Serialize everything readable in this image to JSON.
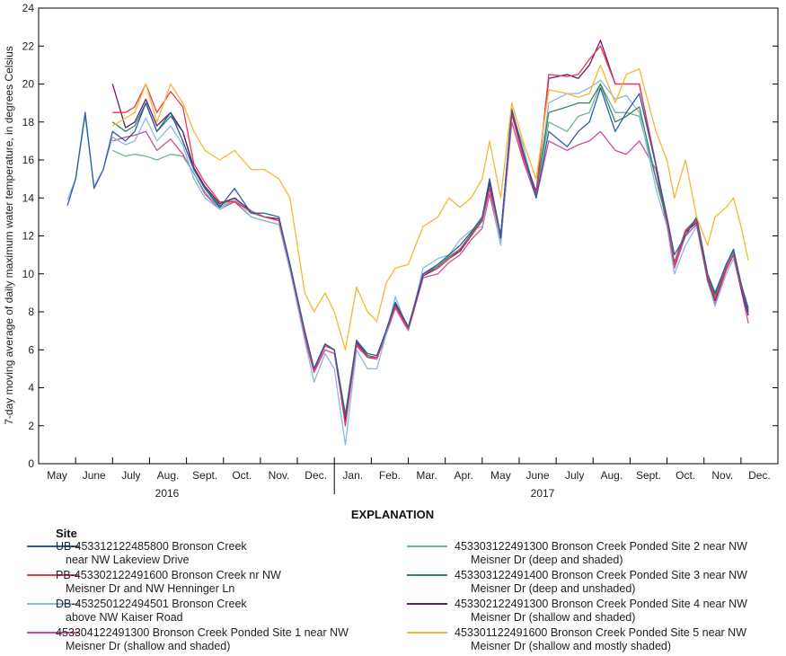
{
  "chart_data": {
    "type": "line",
    "ylabel": "7-day moving average of daily maximum water temperature, in degrees Celsius",
    "ylim": [
      0,
      24
    ],
    "yticks": [
      0,
      2,
      4,
      6,
      8,
      10,
      12,
      14,
      16,
      18,
      20,
      22,
      24
    ],
    "month_labels": [
      "May",
      "June",
      "July",
      "Aug.",
      "Sept.",
      "Oct.",
      "Nov.",
      "Dec.",
      "Jan.",
      "Feb.",
      "Mar.",
      "Apr.",
      "May",
      "June",
      "July",
      "Aug.",
      "Sept.",
      "Oct.",
      "Nov.",
      "Dec."
    ],
    "year_labels": [
      "2016",
      "2017"
    ],
    "x_units": "months since May 1, 2016",
    "x": [
      0.78,
      1.0,
      1.26,
      1.5,
      1.75,
      2.0,
      2.35,
      2.6,
      2.9,
      3.2,
      3.57,
      3.9,
      4.2,
      4.5,
      4.9,
      5.3,
      5.75,
      6.1,
      6.5,
      6.8,
      7.2,
      7.45,
      7.75,
      8.0,
      8.3,
      8.6,
      8.9,
      9.15,
      9.4,
      9.65,
      10.0,
      10.4,
      10.8,
      11.1,
      11.4,
      11.7,
      12.0,
      12.2,
      12.5,
      12.8,
      13.1,
      13.46,
      13.8,
      14.3,
      14.6,
      14.9,
      15.2,
      15.6,
      15.9,
      16.25,
      16.7,
      17.0,
      17.2,
      17.5,
      17.8,
      18.1,
      18.3,
      18.6,
      18.8,
      19.0,
      19.2
    ],
    "explanation_title": "EXPLANATION",
    "legend_heading": "Site",
    "series": [
      {
        "name1": "UB-453312122485800 Bronson Creek",
        "name2": "near NW Lakeview Drive",
        "color": "#2a5caa",
        "values": [
          13.6,
          15,
          18.5,
          14.5,
          15.5,
          17.5,
          17,
          17.5,
          19,
          17.5,
          18.5,
          17,
          15.5,
          14.5,
          13.5,
          14.5,
          13.2,
          13.2,
          13,
          10.5,
          7,
          5,
          6.3,
          6,
          2.5,
          6.5,
          5.8,
          5.7,
          7,
          8.5,
          7.2,
          10,
          10.5,
          11,
          11.5,
          12.2,
          13,
          15,
          12,
          18.7,
          16.5,
          14,
          17.5,
          16.7,
          17.5,
          18,
          19.8,
          17.5,
          18.5,
          19.5,
          15.7,
          13,
          11,
          12,
          13,
          10,
          9,
          10.5,
          11.3,
          9.5,
          8
        ]
      },
      {
        "name1": "PB-453302122491600 Bronson Creek nr NW",
        "name2": "Meisner Dr and NW Henninger Ln",
        "color": "#e8384f",
        "values": [
          null,
          null,
          null,
          null,
          null,
          18.5,
          18.5,
          18.8,
          20,
          18.5,
          19.6,
          18.8,
          15.8,
          14.8,
          13.8,
          13.8,
          13.3,
          13,
          12.8,
          10.4,
          6.8,
          4.9,
          6.2,
          6,
          2,
          6.3,
          5.6,
          5.6,
          7,
          8.3,
          7.1,
          10,
          10.3,
          10.8,
          11.3,
          12,
          12.8,
          14.5,
          12,
          18.4,
          16.2,
          14.2,
          20.5,
          20.4,
          20.5,
          21.3,
          22,
          20,
          20,
          20,
          15.8,
          12.8,
          10.5,
          12.3,
          12.8,
          9.8,
          8.7,
          10.3,
          11,
          9.3,
          8
        ]
      },
      {
        "name1": "DB-453250122494501 Bronson Creek",
        "name2": "above NW Kaiser Road",
        "color": "#8ab8e0",
        "values": [
          13.9,
          15,
          18.3,
          14.6,
          15.5,
          17.2,
          16.8,
          17,
          18.2,
          17,
          17.8,
          16.8,
          15,
          14,
          13.4,
          13.9,
          13,
          12.8,
          12.6,
          10.2,
          6.5,
          4.3,
          5.8,
          5,
          1,
          6,
          5,
          5,
          6.8,
          8.8,
          7,
          10.3,
          10.8,
          11,
          11.8,
          12.3,
          12.5,
          14.5,
          11.5,
          18.5,
          16.8,
          14,
          19,
          19.5,
          19.5,
          19.8,
          20.2,
          19.2,
          19.4,
          18.5,
          14.5,
          12.5,
          10,
          11.5,
          12.5,
          9.6,
          8.3,
          10,
          10.8,
          9.3,
          7.9
        ]
      },
      {
        "name1": "453304122491300 Bronson Creek Ponded Site 1 near NW",
        "name2": "Meisner Dr (shallow and shaded)",
        "color": "#cc4b9c",
        "values": [
          null,
          null,
          null,
          null,
          null,
          17,
          17.2,
          17.3,
          17.5,
          16.5,
          17.1,
          16.3,
          15.3,
          14.2,
          13.4,
          13.8,
          13,
          12.8,
          12.6,
          10.2,
          6.6,
          4.8,
          6,
          5.8,
          2.2,
          6.2,
          5.6,
          5.5,
          6.8,
          8.2,
          7,
          9.8,
          10,
          10.6,
          11,
          11.8,
          12.4,
          14.2,
          11.6,
          18,
          16,
          14,
          17,
          16.5,
          16.8,
          17,
          17.5,
          16.5,
          16.3,
          17,
          15.5,
          12.5,
          10.3,
          12,
          12.6,
          9.6,
          8.4,
          10.2,
          11,
          9.2,
          7.4
        ]
      },
      {
        "name1": "453303122491300 Bronson Creek Ponded Site 2 near NW",
        "name2": "Meisner Dr (deep and shaded)",
        "color": "#6db39a",
        "values": [
          null,
          null,
          null,
          null,
          null,
          16.5,
          16.2,
          16.3,
          16.2,
          16,
          16.3,
          16.2,
          15.3,
          14.3,
          13.5,
          13.9,
          13.2,
          13,
          12.8,
          10.5,
          6.8,
          5,
          6.3,
          6,
          2.5,
          6.5,
          5.7,
          5.6,
          7,
          8.5,
          7.2,
          10,
          10.3,
          10.8,
          11.2,
          12,
          12.8,
          14.8,
          12,
          18.5,
          16.3,
          14.3,
          18,
          17.5,
          18.3,
          18.5,
          20,
          18.5,
          18.5,
          18.3,
          15,
          12.8,
          10.6,
          12.2,
          12.8,
          9.8,
          8.8,
          10.4,
          11.1,
          9.4,
          8.1
        ]
      },
      {
        "name1": "453303122491400 Bronson Creek Ponded Site 3 near NW",
        "name2": "Meisner Dr (deep and unshaded)",
        "color": "#2e8b57",
        "values": [
          null,
          null,
          null,
          null,
          null,
          18,
          17.5,
          17.8,
          19,
          17.5,
          18.3,
          17.5,
          15.5,
          14.5,
          13.6,
          14,
          13.3,
          13,
          12.9,
          10.5,
          6.9,
          5,
          6.3,
          6,
          2.6,
          6.5,
          5.7,
          5.6,
          7,
          8.5,
          7.2,
          10,
          10.4,
          10.9,
          11.3,
          12.1,
          12.9,
          15,
          12,
          18.6,
          16.4,
          14.3,
          18.5,
          18.8,
          19,
          19,
          20,
          18,
          18.3,
          18.8,
          15,
          12.8,
          10.6,
          12.3,
          12.9,
          9.9,
          8.9,
          10.5,
          11.2,
          9.5,
          8.2
        ]
      },
      {
        "name1": "453302122491300 Bronson Creek Ponded Site 4 near NW",
        "name2": "Meisner Dr (shallow and shaded)",
        "color": "#6a1b6a",
        "values": [
          null,
          null,
          null,
          null,
          null,
          20,
          17.7,
          18,
          19.2,
          17.8,
          18.5,
          17.5,
          15.6,
          14.6,
          13.7,
          14,
          13.3,
          13,
          12.9,
          10.5,
          6.8,
          5,
          6.3,
          6,
          2.3,
          6.4,
          5.6,
          5.6,
          7,
          8.4,
          7.1,
          9.9,
          10.3,
          10.8,
          11.2,
          12,
          12.8,
          14.8,
          11.9,
          18.5,
          16.3,
          14.3,
          20.3,
          20.5,
          20.3,
          21,
          22.3,
          20,
          20,
          20,
          15.7,
          12.8,
          10.5,
          12.2,
          12.7,
          9.7,
          8.6,
          10.3,
          11,
          9.2,
          7.8
        ]
      },
      {
        "name1": "453301122491600 Bronson Creek Ponded Site 5 near NW",
        "name2": "Meisner Dr (shallow and mostly shaded)",
        "color": "#f7b731",
        "values": [
          null,
          null,
          null,
          null,
          null,
          17.8,
          18.2,
          18.5,
          20,
          18,
          20,
          19,
          17.5,
          16.5,
          16,
          16.5,
          15.5,
          15.5,
          15,
          14,
          9,
          8,
          9,
          8,
          6,
          9.3,
          8,
          7.5,
          9.5,
          10.3,
          10.5,
          12.5,
          13,
          14,
          13.5,
          14,
          15,
          17,
          14,
          19,
          17,
          15,
          19.7,
          19.5,
          19.3,
          19.5,
          21,
          19,
          20.5,
          20.8,
          17.5,
          16,
          14,
          16,
          13,
          11.5,
          13,
          13.5,
          14,
          12.5,
          10.7
        ]
      }
    ]
  }
}
